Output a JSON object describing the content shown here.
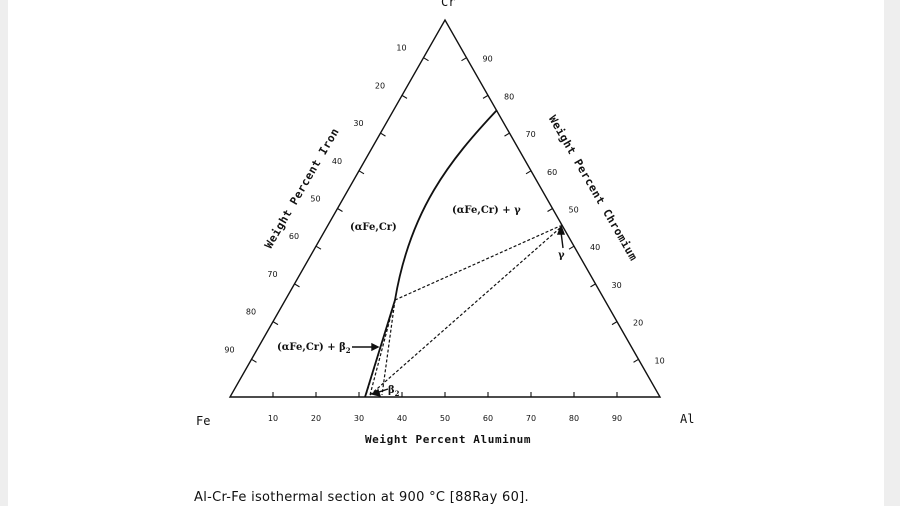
{
  "diagram": {
    "corners": {
      "top": "Cr",
      "left": "Fe",
      "right": "Al"
    },
    "axis_titles": {
      "bottom": "Weight Percent Aluminum",
      "left": "Weight Percent Iron",
      "right": "Weight Percent Chromium"
    },
    "ticks": {
      "bottom": [
        "10",
        "20",
        "30",
        "40",
        "50",
        "60",
        "70",
        "80",
        "90"
      ],
      "left": [
        "10",
        "20",
        "30",
        "40",
        "50",
        "60",
        "70",
        "80",
        "90"
      ],
      "right": [
        "90",
        "80",
        "70",
        "60",
        "50",
        "40",
        "30",
        "20",
        "10"
      ]
    },
    "phase_labels": {
      "alpha": "(αFe,Cr)",
      "alpha_gamma": "(αFe,Cr) + γ",
      "alpha_beta": "(αFe,Cr) + β",
      "beta_sub": "2",
      "gamma": "γ",
      "beta2": "β",
      "beta2_sub": "2"
    }
  },
  "caption": "Al-Cr-Fe isothermal section at 900 °C [88Ray 60]."
}
